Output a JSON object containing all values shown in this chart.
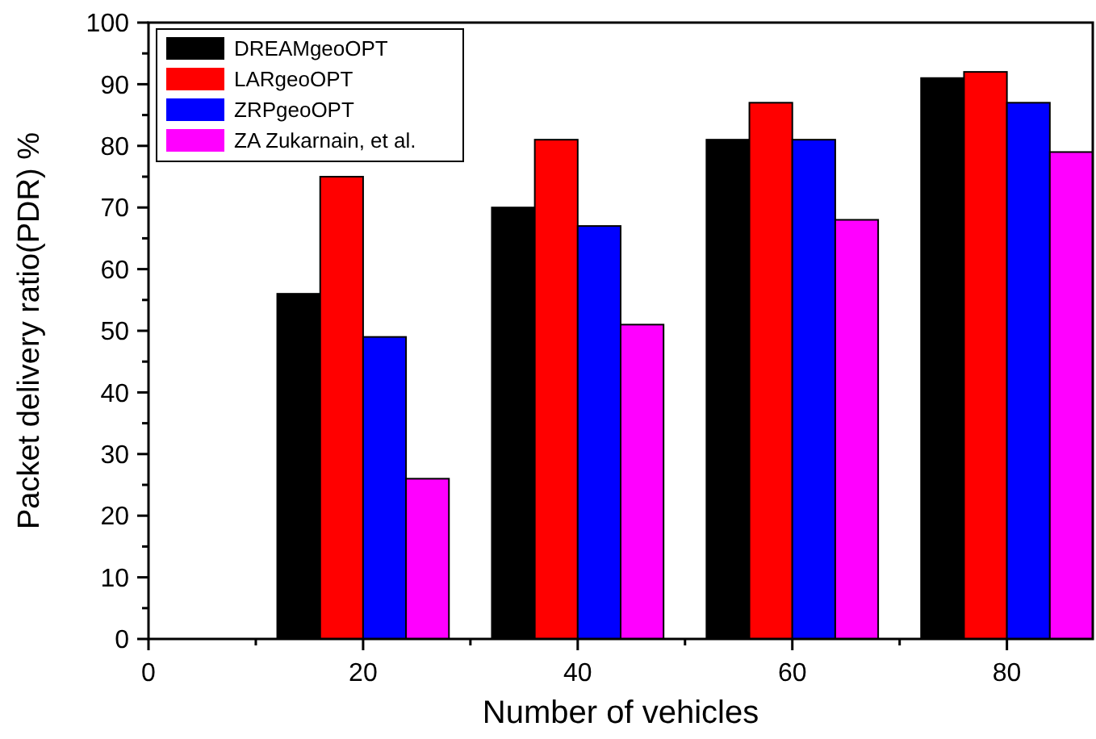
{
  "chart_data": {
    "type": "bar",
    "xlabel": "Number of vehicles",
    "ylabel": "Packet delivery ratio(PDR) %",
    "x": [
      20,
      40,
      60,
      80
    ],
    "series": [
      {
        "name": "DREAMgeoOPT",
        "color": "#000000",
        "values": [
          56,
          70,
          81,
          91
        ]
      },
      {
        "name": "LARgeoOPT",
        "color": "#ff0000",
        "values": [
          75,
          81,
          87,
          92
        ]
      },
      {
        "name": "ZRPgeoOPT",
        "color": "#0000ff",
        "values": [
          49,
          67,
          81,
          87
        ]
      },
      {
        "name": "ZA Zukarnain, et al.",
        "color": "#ff00ff",
        "values": [
          26,
          51,
          68,
          79
        ]
      }
    ],
    "xlim": [
      0,
      88
    ],
    "xticks": [
      0,
      {
        "value": 10,
        "label": null
      },
      20,
      {
        "value": 30,
        "label": null
      },
      40,
      {
        "value": 50,
        "label": null
      },
      60,
      {
        "value": 70,
        "label": null
      },
      80
    ],
    "ylim": [
      0,
      100
    ],
    "yticks": [
      0,
      {
        "value": 5,
        "label": null
      },
      10,
      {
        "value": 15,
        "label": null
      },
      20,
      {
        "value": 25,
        "label": null
      },
      30,
      {
        "value": 35,
        "label": null
      },
      40,
      {
        "value": 45,
        "label": null
      },
      50,
      {
        "value": 55,
        "label": null
      },
      60,
      {
        "value": 65,
        "label": null
      },
      70,
      {
        "value": 75,
        "label": null
      },
      80,
      {
        "value": 85,
        "label": null
      },
      90,
      {
        "value": 95,
        "label": null
      },
      100
    ],
    "grid": false,
    "legend": "top left"
  }
}
